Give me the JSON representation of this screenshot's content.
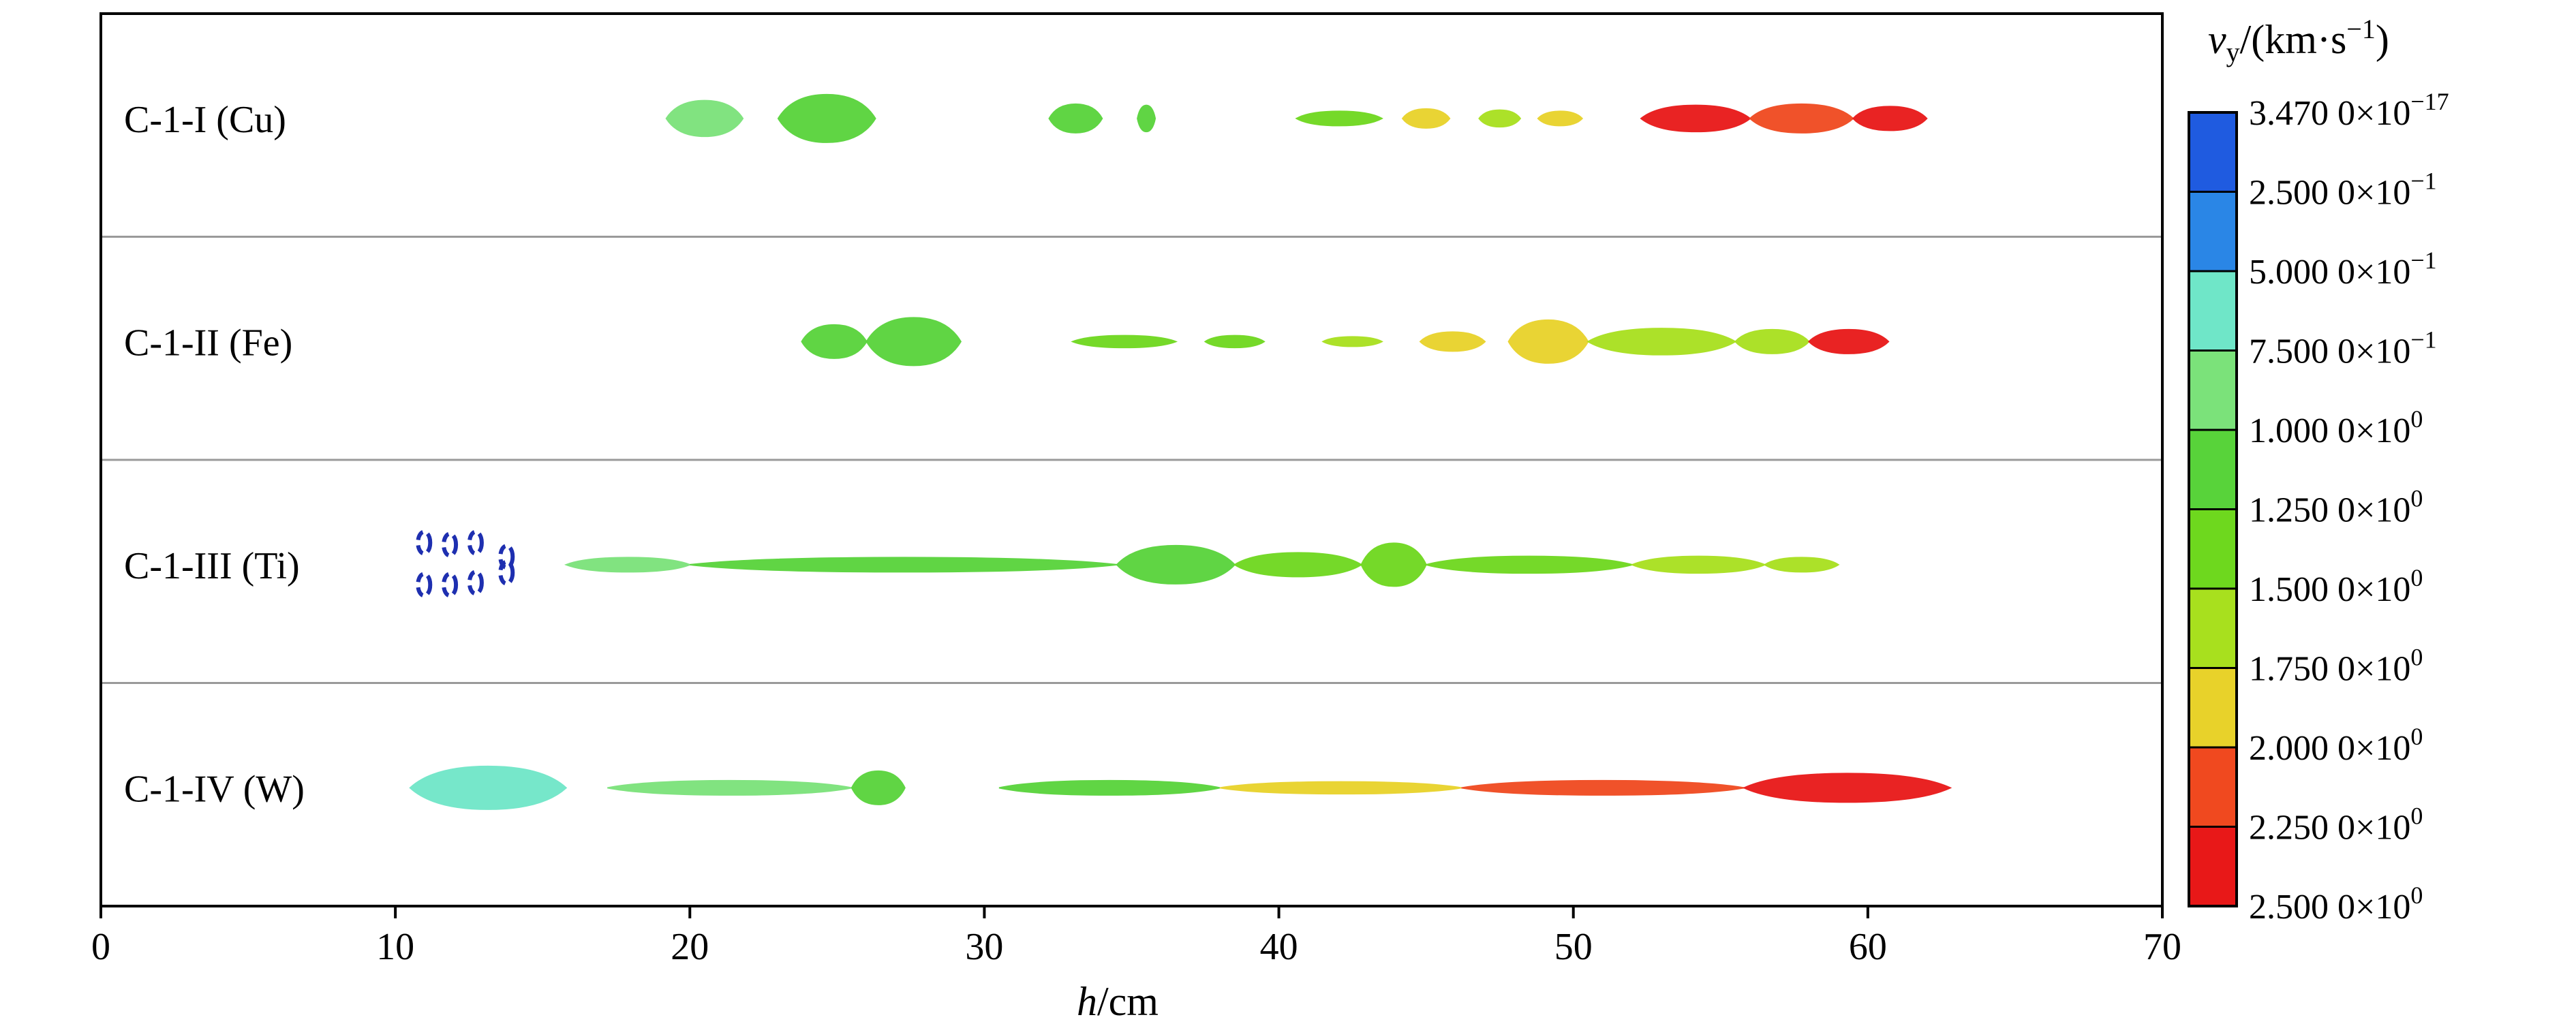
{
  "chart_data": {
    "type": "scatter",
    "xlabel_italic": "h",
    "xlabel_rest": "/cm",
    "x_ticks": [
      "0",
      "10",
      "20",
      "30",
      "40",
      "50",
      "60",
      "70"
    ],
    "xlim": [
      0,
      70
    ],
    "grid": false,
    "colorbar": {
      "title_italic": "v",
      "title_sub": "y",
      "title_rest": "/(km·s",
      "title_sup": "−1",
      "title_close": ")",
      "levels": [
        {
          "mantissa": "3.470 0×10",
          "exp": "−17",
          "color": "#1e2fb0"
        },
        {
          "mantissa": "2.500 0×10",
          "exp": "−1",
          "color": "#1f5be0"
        },
        {
          "mantissa": "5.000 0×10",
          "exp": "−1",
          "color": "#2a86e6"
        },
        {
          "mantissa": "7.500 0×10",
          "exp": "−1",
          "color": "#6fe6c8"
        },
        {
          "mantissa": "1.000 0×10",
          "exp": "0",
          "color": "#7be27a"
        },
        {
          "mantissa": "1.250 0×10",
          "exp": "0",
          "color": "#58d33a"
        },
        {
          "mantissa": "1.500 0×10",
          "exp": "0",
          "color": "#6ed81e"
        },
        {
          "mantissa": "1.750 0×10",
          "exp": "0",
          "color": "#a8e01e"
        },
        {
          "mantissa": "2.000 0×10",
          "exp": "0",
          "color": "#e8d22a"
        },
        {
          "mantissa": "2.250 0×10",
          "exp": "0",
          "color": "#f0491f"
        },
        {
          "mantissa": "2.500 0×10",
          "exp": "0",
          "color": "#e81818"
        }
      ]
    },
    "panels": [
      {
        "label": "C-1-I (Cu)",
        "segments": [
          {
            "x0": 19.2,
            "x1": 21.8,
            "v": 1.0,
            "h": 0.75
          },
          {
            "x0": 23.0,
            "x1": 26.3,
            "v": 1.25,
            "h": 1.0
          },
          {
            "x0": 32.2,
            "x1": 34.0,
            "v": 1.25,
            "h": 0.6
          },
          {
            "x0": 35.2,
            "x1": 35.8,
            "v": 1.25,
            "h": 0.55
          },
          {
            "x0": 40.6,
            "x1": 43.5,
            "v": 1.5,
            "h": 0.3
          },
          {
            "x0": 44.2,
            "x1": 45.8,
            "v": 2.0,
            "h": 0.4
          },
          {
            "x0": 46.8,
            "x1": 48.2,
            "v": 1.75,
            "h": 0.35
          },
          {
            "x0": 48.8,
            "x1": 50.3,
            "v": 2.0,
            "h": 0.3
          },
          {
            "x0": 52.3,
            "x1": 56.0,
            "v": 2.5,
            "h": 0.55
          },
          {
            "x0": 56.0,
            "x1": 59.5,
            "v": 2.25,
            "h": 0.6
          },
          {
            "x0": 59.5,
            "x1": 62.0,
            "v": 2.5,
            "h": 0.5
          }
        ]
      },
      {
        "label": "C-1-II (Fe)",
        "segments": [
          {
            "x0": 23.8,
            "x1": 26.0,
            "v": 1.25,
            "h": 0.7
          },
          {
            "x0": 26.0,
            "x1": 29.2,
            "v": 1.25,
            "h": 1.0
          },
          {
            "x0": 33.0,
            "x1": 36.5,
            "v": 1.5,
            "h": 0.25
          },
          {
            "x0": 37.5,
            "x1": 39.5,
            "v": 1.5,
            "h": 0.25
          },
          {
            "x0": 41.5,
            "x1": 43.5,
            "v": 1.75,
            "h": 0.2
          },
          {
            "x0": 44.8,
            "x1": 47.0,
            "v": 2.0,
            "h": 0.4
          },
          {
            "x0": 47.8,
            "x1": 50.5,
            "v": 2.0,
            "h": 0.9
          },
          {
            "x0": 50.5,
            "x1": 55.5,
            "v": 1.75,
            "h": 0.55
          },
          {
            "x0": 55.5,
            "x1": 58.0,
            "v": 1.75,
            "h": 0.5
          },
          {
            "x0": 58.0,
            "x1": 60.7,
            "v": 2.5,
            "h": 0.5
          }
        ]
      },
      {
        "label": "C-1-III (Ti)",
        "segments": [
          {
            "x0": 10.8,
            "x1": 14.3,
            "v": 0.0,
            "h": 1.4,
            "dashed": true
          },
          {
            "x0": 15.8,
            "x1": 20.0,
            "v": 1.0,
            "h": 0.3
          },
          {
            "x0": 20.0,
            "x1": 34.5,
            "v": 1.25,
            "h": 0.3
          },
          {
            "x0": 34.5,
            "x1": 38.5,
            "v": 1.25,
            "h": 0.8
          },
          {
            "x0": 38.5,
            "x1": 42.8,
            "v": 1.5,
            "h": 0.5
          },
          {
            "x0": 42.8,
            "x1": 45.0,
            "v": 1.5,
            "h": 0.9
          },
          {
            "x0": 45.0,
            "x1": 52.0,
            "v": 1.5,
            "h": 0.35
          },
          {
            "x0": 52.0,
            "x1": 56.5,
            "v": 1.75,
            "h": 0.35
          },
          {
            "x0": 56.5,
            "x1": 59.0,
            "v": 1.75,
            "h": 0.3
          }
        ]
      },
      {
        "label": "C-1-IV (W)",
        "segments": [
          {
            "x0": 10.5,
            "x1": 15.8,
            "v": 0.75,
            "h": 0.9
          },
          {
            "x0": 17.2,
            "x1": 25.5,
            "v": 1.0,
            "h": 0.3
          },
          {
            "x0": 25.5,
            "x1": 27.3,
            "v": 1.25,
            "h": 0.7
          },
          {
            "x0": 30.5,
            "x1": 38.0,
            "v": 1.25,
            "h": 0.3
          },
          {
            "x0": 38.0,
            "x1": 46.2,
            "v": 2.0,
            "h": 0.25
          },
          {
            "x0": 46.2,
            "x1": 55.8,
            "v": 2.25,
            "h": 0.3
          },
          {
            "x0": 55.8,
            "x1": 62.8,
            "v": 2.5,
            "h": 0.6
          }
        ]
      }
    ]
  }
}
